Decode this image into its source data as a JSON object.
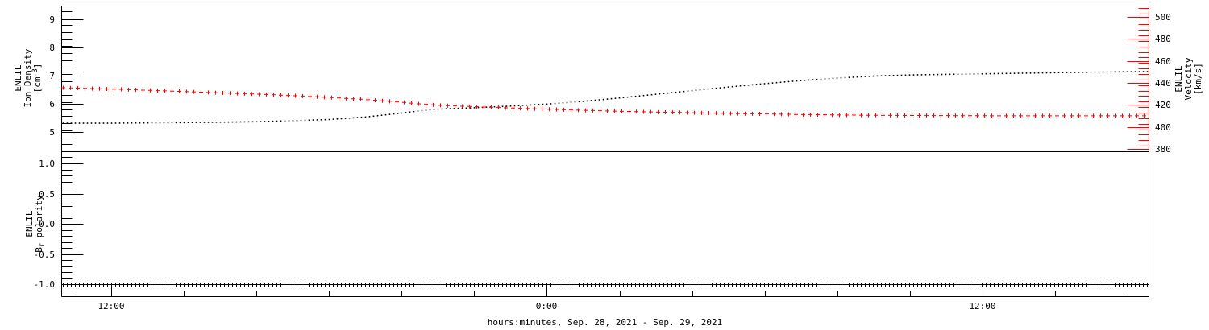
{
  "figure": {
    "background": "#ffffff",
    "frame_color": "#000000",
    "accent_color": "#ff0000"
  },
  "chart_data": [
    {
      "type": "line",
      "panel": "top",
      "xaxis": {
        "title": "hours:minutes, Sep. 28, 2021 - Sep. 29, 2021",
        "range_hours": [
          10.62,
          40.58
        ],
        "major_ticks": [
          {
            "hours": 12,
            "label": "12:00"
          },
          {
            "hours": 24,
            "label": "0:00"
          },
          {
            "hours": 36,
            "label": "12:00"
          }
        ],
        "minor_step_hours": 2
      },
      "yaxis_left": {
        "title_lines": [
          "ENLIL",
          "Ion Density",
          "[cm⁻³]"
        ],
        "range": [
          4.3,
          9.5
        ],
        "major_ticks": [
          {
            "v": 5,
            "label": "5"
          },
          {
            "v": 6,
            "label": "6"
          },
          {
            "v": 7,
            "label": "7"
          },
          {
            "v": 8,
            "label": "8"
          },
          {
            "v": 9,
            "label": "9"
          }
        ],
        "minor_step": 0.25,
        "color": "#000000"
      },
      "yaxis_right": {
        "title_lines": [
          "ENLIL",
          "Velocity",
          "[km/s]"
        ],
        "range": [
          378,
          510
        ],
        "major_ticks": [
          {
            "v": 380,
            "label": "380"
          },
          {
            "v": 400,
            "label": "400"
          },
          {
            "v": 420,
            "label": "420"
          },
          {
            "v": 440,
            "label": "440"
          },
          {
            "v": 460,
            "label": "460"
          },
          {
            "v": 480,
            "label": "480"
          },
          {
            "v": 500,
            "label": "500"
          }
        ],
        "minor_step": 5,
        "color": "#ff0000"
      },
      "series": [
        {
          "name": "ion-density",
          "axis": "left",
          "marker": "dot",
          "color": "#000000",
          "marker_step_px": 5,
          "points": [
            [
              10.62,
              5.32
            ],
            [
              12,
              5.32
            ],
            [
              14,
              5.34
            ],
            [
              16,
              5.37
            ],
            [
              17,
              5.41
            ],
            [
              18,
              5.45
            ],
            [
              19,
              5.54
            ],
            [
              20,
              5.68
            ],
            [
              20.5,
              5.76
            ],
            [
              21,
              5.82
            ],
            [
              22,
              5.87
            ],
            [
              23,
              5.93
            ],
            [
              24,
              6.0
            ],
            [
              25,
              6.1
            ],
            [
              26,
              6.22
            ],
            [
              27,
              6.35
            ],
            [
              28,
              6.48
            ],
            [
              29,
              6.61
            ],
            [
              30,
              6.73
            ],
            [
              31,
              6.84
            ],
            [
              32,
              6.93
            ],
            [
              33,
              7.0
            ],
            [
              34,
              7.04
            ],
            [
              35,
              7.06
            ],
            [
              36,
              7.08
            ],
            [
              37,
              7.1
            ],
            [
              38,
              7.12
            ],
            [
              39,
              7.14
            ],
            [
              40.58,
              7.16
            ]
          ]
        },
        {
          "name": "velocity",
          "axis": "right",
          "marker": "plus",
          "color": "#ff0000",
          "marker_step_px": 9,
          "points": [
            [
              10.62,
              436
            ],
            [
              12,
              434.8
            ],
            [
              14,
              432.5
            ],
            [
              16,
              430.2
            ],
            [
              17,
              428.8
            ],
            [
              18,
              427.2
            ],
            [
              19,
              425.3
            ],
            [
              20,
              422.8
            ],
            [
              20.5,
              421.3
            ],
            [
              21,
              420.1
            ],
            [
              22,
              418.8
            ],
            [
              23,
              417.6
            ],
            [
              24,
              416.5
            ],
            [
              25,
              415.5
            ],
            [
              26,
              414.6
            ],
            [
              27,
              413.9
            ],
            [
              28,
              413.3
            ],
            [
              29,
              412.7
            ],
            [
              30,
              412.2
            ],
            [
              31,
              411.7
            ],
            [
              32,
              411.3
            ],
            [
              33,
              411.0
            ],
            [
              34,
              410.8
            ],
            [
              35,
              410.7
            ],
            [
              36,
              410.6
            ],
            [
              37,
              410.5
            ],
            [
              38,
              410.5
            ],
            [
              39,
              410.5
            ],
            [
              40.58,
              410.5
            ]
          ]
        }
      ]
    },
    {
      "type": "line",
      "panel": "bottom",
      "yaxis_left": {
        "title_lines": [
          "ENLIL",
          "Bᵣ polarity"
        ],
        "range": [
          -1.2,
          1.2
        ],
        "major_ticks": [
          {
            "v": -1.0,
            "label": "-1.0"
          },
          {
            "v": -0.5,
            "label": "-0.5"
          },
          {
            "v": 0.0,
            "label": "0.0"
          },
          {
            "v": 0.5,
            "label": "0.5"
          },
          {
            "v": 1.0,
            "label": "1.0"
          }
        ],
        "minor_step": 0.1,
        "color": "#000000"
      },
      "series": [
        {
          "name": "b-polarity",
          "axis": "left",
          "marker": "plus",
          "color": "#000000",
          "marker_step_px": 5,
          "points": [
            [
              10.62,
              -1.0
            ],
            [
              40.58,
              -1.0
            ]
          ]
        }
      ]
    }
  ]
}
